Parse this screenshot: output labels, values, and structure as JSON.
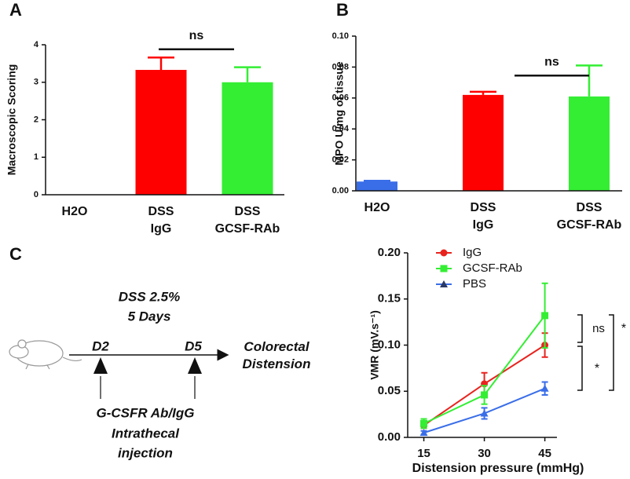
{
  "chart_data": [
    {
      "type": "bar",
      "label": "A",
      "ylabel": "Macroscopic Scoring",
      "categories": [
        "H2O",
        "DSS\nIgG",
        "DSS\nGCSF-RAb"
      ],
      "values": [
        0,
        3.33,
        3.0
      ],
      "errors": [
        null,
        0.33,
        0.4
      ],
      "colors": [
        "#3a6ee8",
        "#ff0000",
        "#33ee33"
      ],
      "ylim": [
        0,
        4
      ],
      "yticks": [
        0,
        1,
        2,
        3,
        4
      ],
      "annotation": "ns"
    },
    {
      "type": "bar",
      "label": "B",
      "ylabel": "MPO U/mg of tissue",
      "categories": [
        "H2O",
        "DSS\nIgG",
        "DSS\nGCSF-RAb"
      ],
      "values": [
        0.006,
        0.062,
        0.061
      ],
      "errors": [
        0.0005,
        0.002,
        0.02
      ],
      "colors": [
        "#3a6ee8",
        "#ff0000",
        "#33ee33"
      ],
      "ylim": [
        0,
        0.1
      ],
      "yticks": [
        {
          "value": 0,
          "label": "0.00"
        },
        {
          "value": 0.02,
          "label": "0.02"
        },
        {
          "value": 0.04,
          "label": "0.04"
        },
        {
          "value": 0.06,
          "label": "0.06"
        },
        {
          "value": 0.08,
          "label": "0.08"
        },
        {
          "value": 0.1,
          "label": "0.10"
        }
      ],
      "annotation": "ns"
    },
    {
      "type": "line",
      "label": "C",
      "ylabel": "VMR (mV.s⁻¹)",
      "xlabel": "Distension pressure (mmHg)",
      "x": [
        15,
        30,
        45
      ],
      "series": [
        {
          "name": "IgG",
          "color": "#e8231e",
          "marker": "circle",
          "values": [
            0.013,
            0.058,
            0.1
          ],
          "errors": [
            0.003,
            0.012,
            0.013
          ]
        },
        {
          "name": "GCSF-RAb",
          "color": "#33ee33",
          "marker": "square",
          "values": [
            0.015,
            0.046,
            0.132
          ],
          "errors": [
            0.005,
            0.01,
            0.035
          ]
        },
        {
          "name": "PBS",
          "color": "#3a6ee8",
          "marker": "triangle",
          "values": [
            0.005,
            0.026,
            0.053
          ],
          "errors": [
            0.002,
            0.006,
            0.007
          ]
        }
      ],
      "xlim": [
        11,
        48
      ],
      "xticks": [
        15,
        30,
        45
      ],
      "ylim": [
        0,
        0.2
      ],
      "yticks": [
        {
          "value": 0,
          "label": "0.00"
        },
        {
          "value": 0.05,
          "label": "0.05"
        },
        {
          "value": 0.1,
          "label": "0.10"
        },
        {
          "value": 0.15,
          "label": "0.15"
        },
        {
          "value": 0.2,
          "label": "0.20"
        }
      ],
      "annotations": [
        "ns",
        "*",
        "*"
      ],
      "legend": "upper left"
    }
  ],
  "diagram": {
    "treatment": "DSS 2.5%",
    "duration": "5 Days",
    "day_start": "D2",
    "day_end": "D5",
    "outcome": "Colorectal\nDistension",
    "injection": [
      "G-CSFR Ab/IgG",
      "Intrathecal",
      "injection"
    ]
  }
}
